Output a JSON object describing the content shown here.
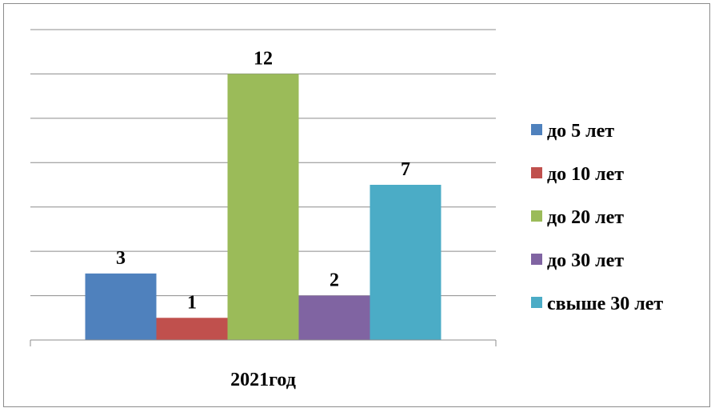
{
  "chart_data": {
    "type": "bar",
    "categories": [
      "2021год"
    ],
    "series": [
      {
        "name": "до 5 лет",
        "values": [
          3
        ],
        "color": "#4f81bd"
      },
      {
        "name": "до 10 лет",
        "values": [
          1
        ],
        "color": "#c0504d"
      },
      {
        "name": "до 20 лет",
        "values": [
          12
        ],
        "color": "#9bbb59"
      },
      {
        "name": "до 30 лет",
        "values": [
          2
        ],
        "color": "#8064a2"
      },
      {
        "name": "свыше 30 лет",
        "values": [
          7
        ],
        "color": "#4bacc6"
      }
    ],
    "ylim": [
      0,
      14
    ],
    "grid": true,
    "legend": "right"
  }
}
